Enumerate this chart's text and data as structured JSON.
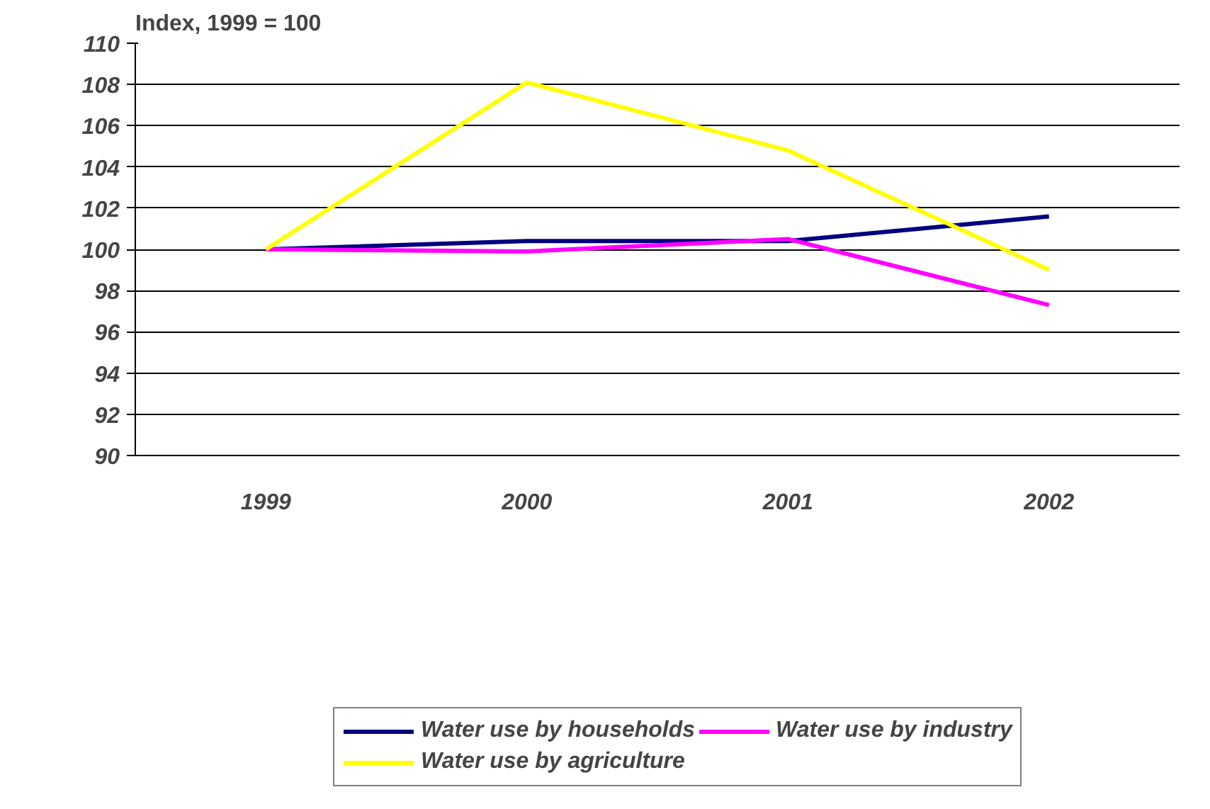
{
  "chart_data": {
    "type": "line",
    "ylabel": "Index, 1999 = 100",
    "categories": [
      "1999",
      "2000",
      "2001",
      "2002"
    ],
    "series": [
      {
        "name": "Water use by households",
        "color": "#000080",
        "values": [
          100,
          100.4,
          100.4,
          101.6
        ]
      },
      {
        "name": "Water use by industry",
        "color": "#ff00ff",
        "values": [
          100,
          99.9,
          100.5,
          97.3
        ]
      },
      {
        "name": "Water use by agriculture",
        "color": "#ffff00",
        "values": [
          100,
          108.1,
          104.8,
          99.0
        ]
      }
    ],
    "ylim": [
      90,
      110
    ],
    "yticks": [
      90,
      92,
      94,
      96,
      98,
      100,
      102,
      104,
      106,
      108,
      110
    ],
    "grid": "y",
    "legend": "bottom",
    "marker": "none",
    "line_style": "solid"
  }
}
